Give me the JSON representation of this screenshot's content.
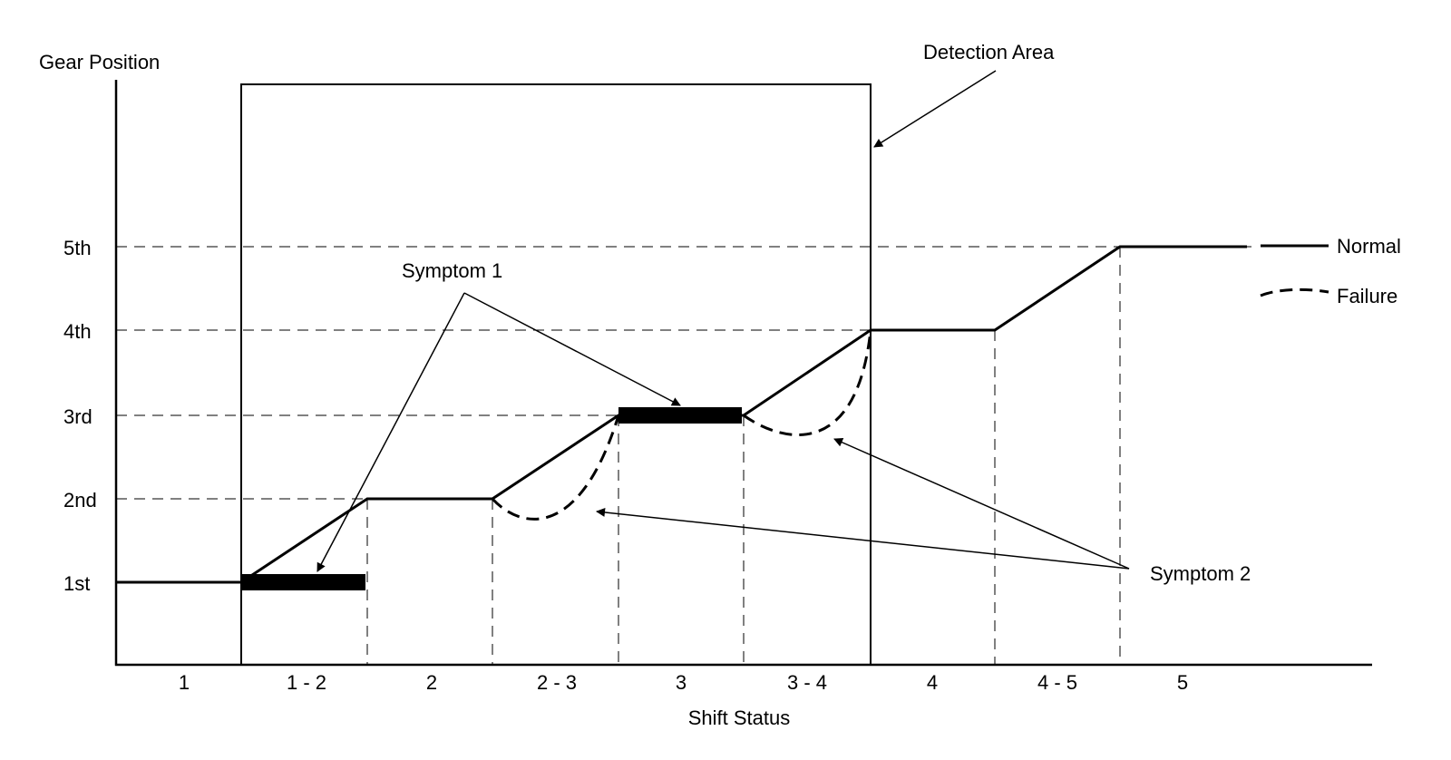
{
  "labels": {
    "y_axis": "Gear Position",
    "x_axis": "Shift Status",
    "detection_area": "Detection Area",
    "symptom_1": "Symptom 1",
    "symptom_2": "Symptom 2"
  },
  "gears": [
    "1st",
    "2nd",
    "3rd",
    "4th",
    "5th"
  ],
  "shift_status": [
    "1",
    "1 - 2",
    "2",
    "2 - 3",
    "3",
    "3 - 4",
    "4",
    "4 - 5",
    "5"
  ],
  "legend": [
    {
      "label": "Normal",
      "style": "solid"
    },
    {
      "label": "Failure",
      "style": "dashed"
    }
  ],
  "colors": {
    "ink": "#000000",
    "background": "#ffffff"
  }
}
